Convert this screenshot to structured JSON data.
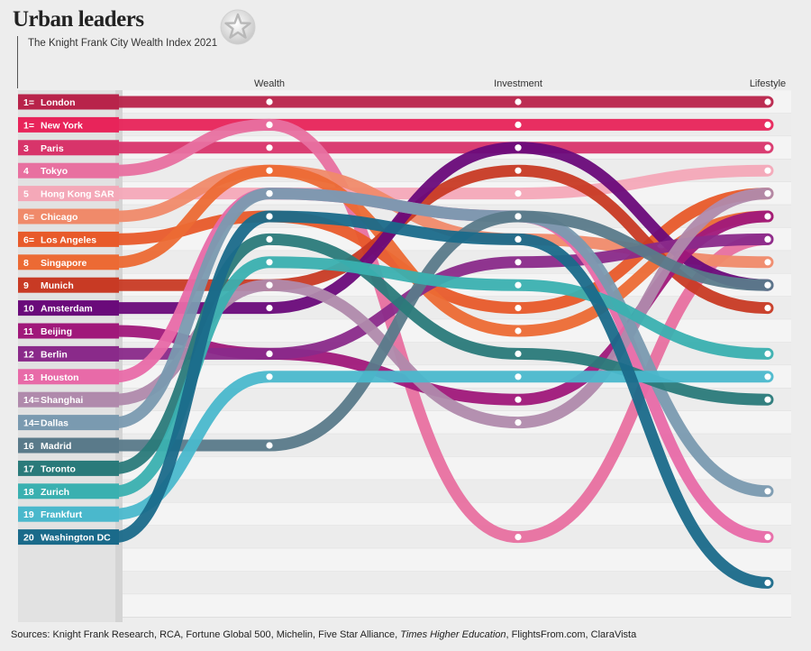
{
  "title": "Urban leaders",
  "subtitle": "The Knight Frank City Wealth Index 2021",
  "sources": {
    "prefix": "Sources: Knight Frank Research, RCA, Fortune Global 500, Michelin, Five Star Alliance, ",
    "italic": "Times Higher Education",
    "suffix": ", FlightsFrom.com, ClaraVista"
  },
  "logo_icon": "star-badge-icon",
  "chart_data": {
    "type": "bump",
    "stages": [
      "Wealth",
      "Investment",
      "Lifestyle"
    ],
    "series": [
      {
        "rank_label": "1=",
        "name": "London",
        "color": "#b8234a",
        "ranks": [
          1,
          1,
          1
        ]
      },
      {
        "rank_label": "1=",
        "name": "New York",
        "color": "#e8245a",
        "ranks": [
          2,
          2,
          2
        ]
      },
      {
        "rank_label": "3",
        "name": "Paris",
        "color": "#d8346a",
        "ranks": [
          3,
          3,
          3
        ]
      },
      {
        "rank_label": "4",
        "name": "Tokyo",
        "color": "#e870a0",
        "ranks": [
          2,
          20,
          7
        ]
      },
      {
        "rank_label": "5",
        "name": "Hong Kong SAR",
        "color": "#f4a8b8",
        "ranks": [
          5,
          5,
          4
        ]
      },
      {
        "rank_label": "6=",
        "name": "Chicago",
        "color": "#f08a6a",
        "ranks": [
          4,
          7,
          8
        ]
      },
      {
        "rank_label": "6=",
        "name": "Los Angeles",
        "color": "#e85a2a",
        "ranks": [
          6,
          10,
          5
        ]
      },
      {
        "rank_label": "8",
        "name": "Singapore",
        "color": "#ec6a34",
        "ranks": [
          4,
          11,
          6
        ]
      },
      {
        "rank_label": "9",
        "name": "Munich",
        "color": "#c83a24",
        "ranks": [
          9,
          4,
          10
        ]
      },
      {
        "rank_label": "10",
        "name": "Amsterdam",
        "color": "#6a0a7a",
        "ranks": [
          10,
          3,
          9
        ]
      },
      {
        "rank_label": "11",
        "name": "Beijing",
        "color": "#a0187a",
        "ranks": [
          12,
          14,
          6
        ]
      },
      {
        "rank_label": "12",
        "name": "Berlin",
        "color": "#8a2a8a",
        "ranks": [
          12,
          8,
          7
        ]
      },
      {
        "rank_label": "13",
        "name": "Houston",
        "color": "#e86aa8",
        "ranks": [
          5,
          6,
          20
        ]
      },
      {
        "rank_label": "14=",
        "name": "Shanghai",
        "color": "#b08aac",
        "ranks": [
          9,
          15,
          5
        ]
      },
      {
        "rank_label": "14=",
        "name": "Dallas",
        "color": "#7a9ab0",
        "ranks": [
          5,
          6,
          18
        ]
      },
      {
        "rank_label": "16",
        "name": "Madrid",
        "color": "#5a7a8a",
        "ranks": [
          16,
          6,
          9
        ]
      },
      {
        "rank_label": "17",
        "name": "Toronto",
        "color": "#2a7a7a",
        "ranks": [
          7,
          12,
          14
        ]
      },
      {
        "rank_label": "18",
        "name": "Zurich",
        "color": "#3ab0b0",
        "ranks": [
          8,
          9,
          12
        ]
      },
      {
        "rank_label": "19",
        "name": "Frankfurt",
        "color": "#4ab8cc",
        "ranks": [
          13,
          13,
          13
        ]
      },
      {
        "rank_label": "20",
        "name": "Washington DC",
        "color": "#1a6a8a",
        "ranks": [
          6,
          7,
          22
        ]
      }
    ]
  }
}
